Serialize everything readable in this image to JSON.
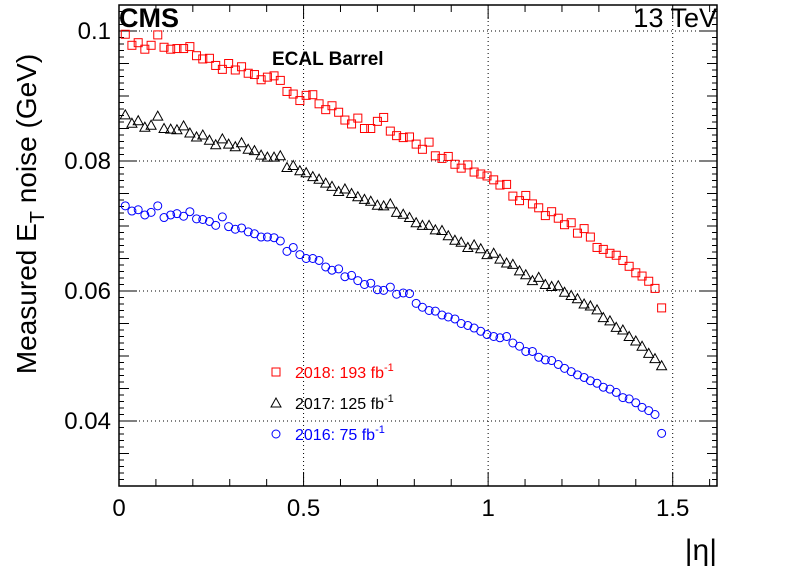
{
  "header": {
    "experiment": "CMS",
    "energy": "13 TeV",
    "region": "ECAL Barrel"
  },
  "chart_data": {
    "type": "scatter",
    "title": "",
    "xlabel": "|η|",
    "ylabel": "Measured E_T noise (GeV)",
    "ylabel_main": "Measured E",
    "ylabel_sub": "T",
    "ylabel_tail": " noise (GeV)",
    "xlim": [
      0,
      1.62
    ],
    "ylim": [
      0.03,
      0.104
    ],
    "grid": true,
    "x_ticks": [
      {
        "value": 0,
        "label": "0"
      },
      {
        "value": 0.5,
        "label": "0.5"
      },
      {
        "value": 1,
        "label": "1"
      },
      {
        "value": 1.5,
        "label": "1.5"
      }
    ],
    "y_ticks": [
      {
        "value": 0.04,
        "label": "0.04"
      },
      {
        "value": 0.06,
        "label": "0.06"
      },
      {
        "value": 0.08,
        "label": "0.08"
      },
      {
        "value": 0.1,
        "label": "0.1"
      }
    ],
    "legend_position": "bottom-left",
    "series": [
      {
        "name": "2018: 193 fb-1",
        "label_main": "2018: 193 fb",
        "label_sup": "-1",
        "color": "#ff0000",
        "marker": "square",
        "x": [
          0.017,
          0.035,
          0.052,
          0.07,
          0.087,
          0.105,
          0.122,
          0.14,
          0.157,
          0.175,
          0.192,
          0.21,
          0.227,
          0.245,
          0.262,
          0.28,
          0.297,
          0.315,
          0.332,
          0.35,
          0.367,
          0.385,
          0.402,
          0.42,
          0.437,
          0.455,
          0.472,
          0.49,
          0.507,
          0.525,
          0.542,
          0.56,
          0.577,
          0.595,
          0.612,
          0.63,
          0.647,
          0.665,
          0.682,
          0.7,
          0.717,
          0.735,
          0.752,
          0.77,
          0.787,
          0.805,
          0.822,
          0.84,
          0.857,
          0.875,
          0.892,
          0.91,
          0.927,
          0.945,
          0.962,
          0.98,
          0.997,
          1.015,
          1.032,
          1.05,
          1.067,
          1.085,
          1.102,
          1.12,
          1.137,
          1.155,
          1.172,
          1.19,
          1.207,
          1.225,
          1.242,
          1.26,
          1.277,
          1.295,
          1.312,
          1.33,
          1.347,
          1.365,
          1.382,
          1.4,
          1.417,
          1.435,
          1.452,
          1.47
        ],
        "y": [
          0.0995,
          0.0978,
          0.0982,
          0.0972,
          0.0978,
          0.0994,
          0.0975,
          0.0972,
          0.0973,
          0.0973,
          0.0976,
          0.0962,
          0.0957,
          0.0958,
          0.0947,
          0.0941,
          0.095,
          0.094,
          0.0945,
          0.0935,
          0.0933,
          0.0925,
          0.0929,
          0.0931,
          0.0924,
          0.0907,
          0.0903,
          0.0893,
          0.0901,
          0.0902,
          0.0888,
          0.0879,
          0.0885,
          0.0875,
          0.0863,
          0.0857,
          0.0866,
          0.085,
          0.085,
          0.0861,
          0.0867,
          0.0846,
          0.0839,
          0.0836,
          0.0837,
          0.0826,
          0.0818,
          0.0829,
          0.0808,
          0.0804,
          0.0807,
          0.0795,
          0.0789,
          0.0794,
          0.0783,
          0.078,
          0.0777,
          0.0771,
          0.0763,
          0.0764,
          0.0746,
          0.0739,
          0.0747,
          0.0734,
          0.0728,
          0.0716,
          0.0722,
          0.0712,
          0.0702,
          0.0705,
          0.0689,
          0.0696,
          0.0683,
          0.0667,
          0.0664,
          0.0658,
          0.0655,
          0.0647,
          0.0638,
          0.0628,
          0.0623,
          0.0615,
          0.0604,
          0.0574
        ]
      },
      {
        "name": "2017: 125 fb-1",
        "label_main": "2017: 125 fb",
        "label_sup": "-1",
        "color": "#000000",
        "marker": "triangle",
        "x": [
          0.017,
          0.035,
          0.052,
          0.07,
          0.087,
          0.105,
          0.122,
          0.14,
          0.157,
          0.175,
          0.192,
          0.21,
          0.227,
          0.245,
          0.262,
          0.28,
          0.297,
          0.315,
          0.332,
          0.35,
          0.367,
          0.385,
          0.402,
          0.42,
          0.437,
          0.455,
          0.472,
          0.49,
          0.507,
          0.525,
          0.542,
          0.56,
          0.577,
          0.595,
          0.612,
          0.63,
          0.647,
          0.665,
          0.682,
          0.7,
          0.717,
          0.735,
          0.752,
          0.77,
          0.787,
          0.805,
          0.822,
          0.84,
          0.857,
          0.875,
          0.892,
          0.91,
          0.927,
          0.945,
          0.962,
          0.98,
          0.997,
          1.015,
          1.032,
          1.05,
          1.067,
          1.085,
          1.102,
          1.12,
          1.137,
          1.155,
          1.172,
          1.19,
          1.207,
          1.225,
          1.242,
          1.26,
          1.277,
          1.295,
          1.312,
          1.33,
          1.347,
          1.365,
          1.382,
          1.4,
          1.417,
          1.435,
          1.452,
          1.47
        ],
        "y": [
          0.0871,
          0.0858,
          0.0862,
          0.0852,
          0.0855,
          0.0869,
          0.085,
          0.0849,
          0.0848,
          0.0854,
          0.0843,
          0.0837,
          0.084,
          0.0832,
          0.0825,
          0.0834,
          0.0826,
          0.0822,
          0.0828,
          0.0818,
          0.0816,
          0.0809,
          0.0806,
          0.0806,
          0.0808,
          0.079,
          0.0793,
          0.0785,
          0.0782,
          0.0776,
          0.0772,
          0.0766,
          0.0761,
          0.0753,
          0.0757,
          0.075,
          0.0745,
          0.0741,
          0.0738,
          0.0732,
          0.0731,
          0.0734,
          0.0721,
          0.0718,
          0.0713,
          0.0705,
          0.0701,
          0.0701,
          0.0694,
          0.0693,
          0.0685,
          0.0678,
          0.0675,
          0.0667,
          0.0671,
          0.0665,
          0.0656,
          0.0658,
          0.0649,
          0.0643,
          0.0641,
          0.0631,
          0.0625,
          0.0616,
          0.0621,
          0.061,
          0.0607,
          0.0608,
          0.0598,
          0.0593,
          0.0588,
          0.058,
          0.0577,
          0.0571,
          0.0559,
          0.0554,
          0.0544,
          0.054,
          0.053,
          0.0523,
          0.0515,
          0.0504,
          0.0496,
          0.0485
        ]
      },
      {
        "name": "2016: 75 fb-1",
        "label_main": "2016: 75 fb",
        "label_sup": "-1",
        "color": "#0000ff",
        "marker": "circle",
        "x": [
          0.017,
          0.035,
          0.052,
          0.07,
          0.087,
          0.105,
          0.122,
          0.14,
          0.157,
          0.175,
          0.192,
          0.21,
          0.227,
          0.245,
          0.262,
          0.28,
          0.297,
          0.315,
          0.332,
          0.35,
          0.367,
          0.385,
          0.402,
          0.42,
          0.437,
          0.455,
          0.472,
          0.49,
          0.507,
          0.525,
          0.542,
          0.56,
          0.577,
          0.595,
          0.612,
          0.63,
          0.647,
          0.665,
          0.682,
          0.7,
          0.717,
          0.735,
          0.752,
          0.77,
          0.787,
          0.805,
          0.822,
          0.84,
          0.857,
          0.875,
          0.892,
          0.91,
          0.927,
          0.945,
          0.962,
          0.98,
          0.997,
          1.015,
          1.032,
          1.05,
          1.067,
          1.085,
          1.102,
          1.12,
          1.137,
          1.155,
          1.172,
          1.19,
          1.207,
          1.225,
          1.242,
          1.26,
          1.277,
          1.295,
          1.312,
          1.33,
          1.347,
          1.365,
          1.382,
          1.4,
          1.417,
          1.435,
          1.452,
          1.47
        ],
        "y": [
          0.0731,
          0.0723,
          0.0725,
          0.0717,
          0.0721,
          0.0731,
          0.0713,
          0.0717,
          0.0719,
          0.0715,
          0.0722,
          0.0711,
          0.071,
          0.0707,
          0.0701,
          0.0714,
          0.0699,
          0.0695,
          0.0697,
          0.0691,
          0.0688,
          0.0683,
          0.0683,
          0.0682,
          0.0677,
          0.0661,
          0.0667,
          0.0656,
          0.065,
          0.065,
          0.0647,
          0.0637,
          0.0632,
          0.0634,
          0.0622,
          0.0624,
          0.0616,
          0.061,
          0.0612,
          0.0602,
          0.0601,
          0.0606,
          0.0595,
          0.0597,
          0.0596,
          0.0581,
          0.0575,
          0.057,
          0.0569,
          0.0563,
          0.056,
          0.0557,
          0.055,
          0.0547,
          0.0543,
          0.0538,
          0.0533,
          0.053,
          0.0528,
          0.053,
          0.052,
          0.0515,
          0.0507,
          0.0507,
          0.0498,
          0.0494,
          0.0493,
          0.0487,
          0.0481,
          0.0476,
          0.0471,
          0.0467,
          0.0462,
          0.0458,
          0.0452,
          0.0449,
          0.0444,
          0.0436,
          0.0434,
          0.0428,
          0.0421,
          0.0416,
          0.041,
          0.0381
        ]
      }
    ]
  }
}
